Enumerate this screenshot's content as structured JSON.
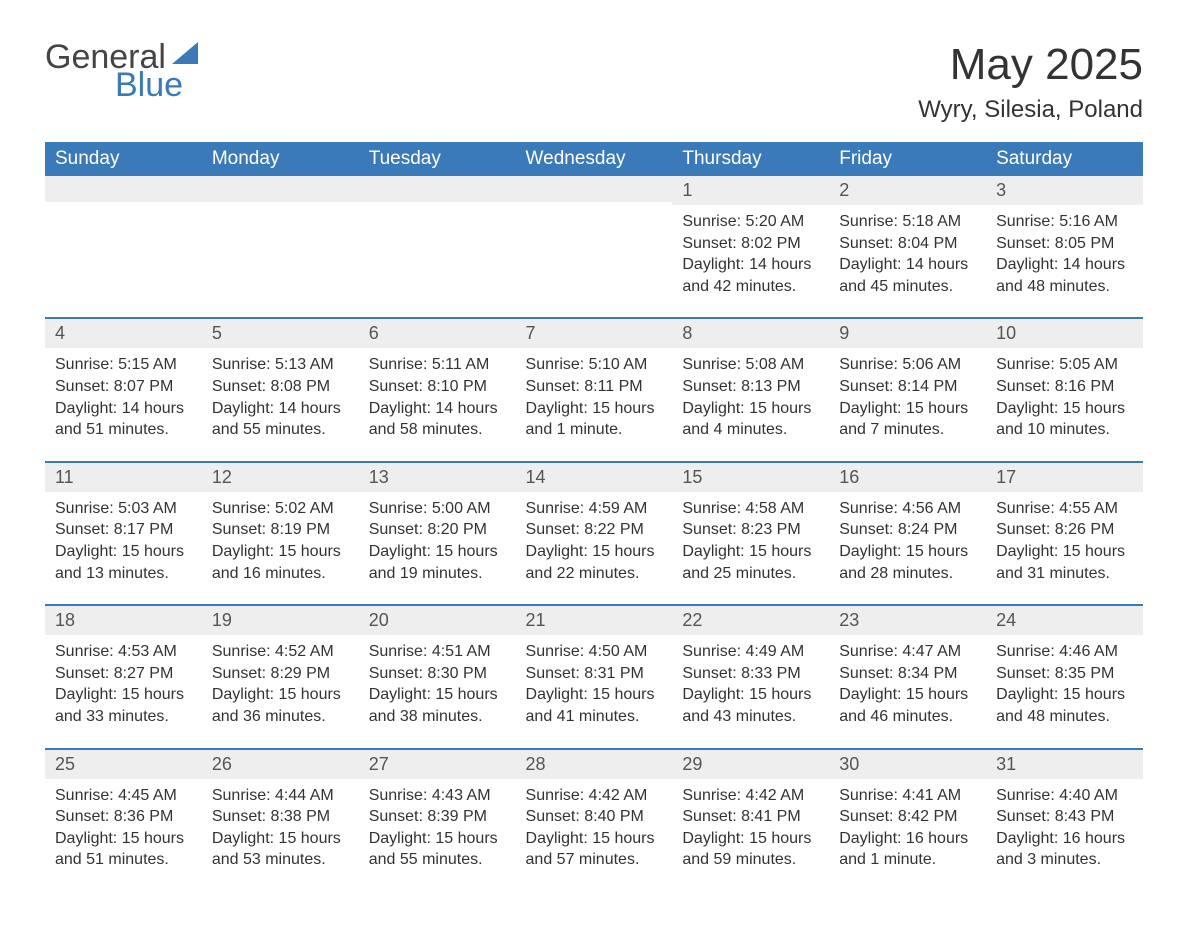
{
  "brand": {
    "part1": "General",
    "part2": "Blue"
  },
  "title": "May 2025",
  "location": "Wyry, Silesia, Poland",
  "colors": {
    "header_bg": "#3a7ab8",
    "header_text": "#ffffff",
    "daynum_bg": "#eeeeee",
    "text": "#333333",
    "week_border": "#3a7ab8",
    "logo_blue": "#3a7ab8",
    "logo_gray": "#444444"
  },
  "day_names": [
    "Sunday",
    "Monday",
    "Tuesday",
    "Wednesday",
    "Thursday",
    "Friday",
    "Saturday"
  ],
  "weeks": [
    [
      null,
      null,
      null,
      null,
      {
        "n": "1",
        "sunrise": "5:20 AM",
        "sunset": "8:02 PM",
        "daylight": "14 hours and 42 minutes."
      },
      {
        "n": "2",
        "sunrise": "5:18 AM",
        "sunset": "8:04 PM",
        "daylight": "14 hours and 45 minutes."
      },
      {
        "n": "3",
        "sunrise": "5:16 AM",
        "sunset": "8:05 PM",
        "daylight": "14 hours and 48 minutes."
      }
    ],
    [
      {
        "n": "4",
        "sunrise": "5:15 AM",
        "sunset": "8:07 PM",
        "daylight": "14 hours and 51 minutes."
      },
      {
        "n": "5",
        "sunrise": "5:13 AM",
        "sunset": "8:08 PM",
        "daylight": "14 hours and 55 minutes."
      },
      {
        "n": "6",
        "sunrise": "5:11 AM",
        "sunset": "8:10 PM",
        "daylight": "14 hours and 58 minutes."
      },
      {
        "n": "7",
        "sunrise": "5:10 AM",
        "sunset": "8:11 PM",
        "daylight": "15 hours and 1 minute."
      },
      {
        "n": "8",
        "sunrise": "5:08 AM",
        "sunset": "8:13 PM",
        "daylight": "15 hours and 4 minutes."
      },
      {
        "n": "9",
        "sunrise": "5:06 AM",
        "sunset": "8:14 PM",
        "daylight": "15 hours and 7 minutes."
      },
      {
        "n": "10",
        "sunrise": "5:05 AM",
        "sunset": "8:16 PM",
        "daylight": "15 hours and 10 minutes."
      }
    ],
    [
      {
        "n": "11",
        "sunrise": "5:03 AM",
        "sunset": "8:17 PM",
        "daylight": "15 hours and 13 minutes."
      },
      {
        "n": "12",
        "sunrise": "5:02 AM",
        "sunset": "8:19 PM",
        "daylight": "15 hours and 16 minutes."
      },
      {
        "n": "13",
        "sunrise": "5:00 AM",
        "sunset": "8:20 PM",
        "daylight": "15 hours and 19 minutes."
      },
      {
        "n": "14",
        "sunrise": "4:59 AM",
        "sunset": "8:22 PM",
        "daylight": "15 hours and 22 minutes."
      },
      {
        "n": "15",
        "sunrise": "4:58 AM",
        "sunset": "8:23 PM",
        "daylight": "15 hours and 25 minutes."
      },
      {
        "n": "16",
        "sunrise": "4:56 AM",
        "sunset": "8:24 PM",
        "daylight": "15 hours and 28 minutes."
      },
      {
        "n": "17",
        "sunrise": "4:55 AM",
        "sunset": "8:26 PM",
        "daylight": "15 hours and 31 minutes."
      }
    ],
    [
      {
        "n": "18",
        "sunrise": "4:53 AM",
        "sunset": "8:27 PM",
        "daylight": "15 hours and 33 minutes."
      },
      {
        "n": "19",
        "sunrise": "4:52 AM",
        "sunset": "8:29 PM",
        "daylight": "15 hours and 36 minutes."
      },
      {
        "n": "20",
        "sunrise": "4:51 AM",
        "sunset": "8:30 PM",
        "daylight": "15 hours and 38 minutes."
      },
      {
        "n": "21",
        "sunrise": "4:50 AM",
        "sunset": "8:31 PM",
        "daylight": "15 hours and 41 minutes."
      },
      {
        "n": "22",
        "sunrise": "4:49 AM",
        "sunset": "8:33 PM",
        "daylight": "15 hours and 43 minutes."
      },
      {
        "n": "23",
        "sunrise": "4:47 AM",
        "sunset": "8:34 PM",
        "daylight": "15 hours and 46 minutes."
      },
      {
        "n": "24",
        "sunrise": "4:46 AM",
        "sunset": "8:35 PM",
        "daylight": "15 hours and 48 minutes."
      }
    ],
    [
      {
        "n": "25",
        "sunrise": "4:45 AM",
        "sunset": "8:36 PM",
        "daylight": "15 hours and 51 minutes."
      },
      {
        "n": "26",
        "sunrise": "4:44 AM",
        "sunset": "8:38 PM",
        "daylight": "15 hours and 53 minutes."
      },
      {
        "n": "27",
        "sunrise": "4:43 AM",
        "sunset": "8:39 PM",
        "daylight": "15 hours and 55 minutes."
      },
      {
        "n": "28",
        "sunrise": "4:42 AM",
        "sunset": "8:40 PM",
        "daylight": "15 hours and 57 minutes."
      },
      {
        "n": "29",
        "sunrise": "4:42 AM",
        "sunset": "8:41 PM",
        "daylight": "15 hours and 59 minutes."
      },
      {
        "n": "30",
        "sunrise": "4:41 AM",
        "sunset": "8:42 PM",
        "daylight": "16 hours and 1 minute."
      },
      {
        "n": "31",
        "sunrise": "4:40 AM",
        "sunset": "8:43 PM",
        "daylight": "16 hours and 3 minutes."
      }
    ]
  ],
  "labels": {
    "sunrise": "Sunrise: ",
    "sunset": "Sunset: ",
    "daylight": "Daylight: "
  }
}
